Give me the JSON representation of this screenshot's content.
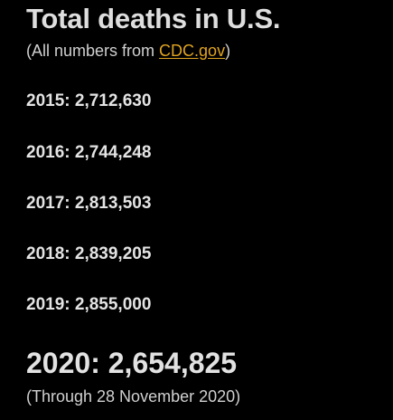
{
  "title": "Total deaths in U.S.",
  "source": {
    "prefix": "(All numbers from ",
    "link_text": "CDC.gov",
    "suffix": ")"
  },
  "years": [
    {
      "text": "2015: 2,712,630"
    },
    {
      "text": "2016: 2,744,248"
    },
    {
      "text": "2017: 2,813,503"
    },
    {
      "text": "2018: 2,839,205"
    },
    {
      "text": "2019: 2,855,000"
    }
  ],
  "highlight": {
    "text": "2020: 2,654,825",
    "note": "(Through 28 November 2020)"
  },
  "colors": {
    "background": "#000000",
    "link": "#e0a421"
  }
}
